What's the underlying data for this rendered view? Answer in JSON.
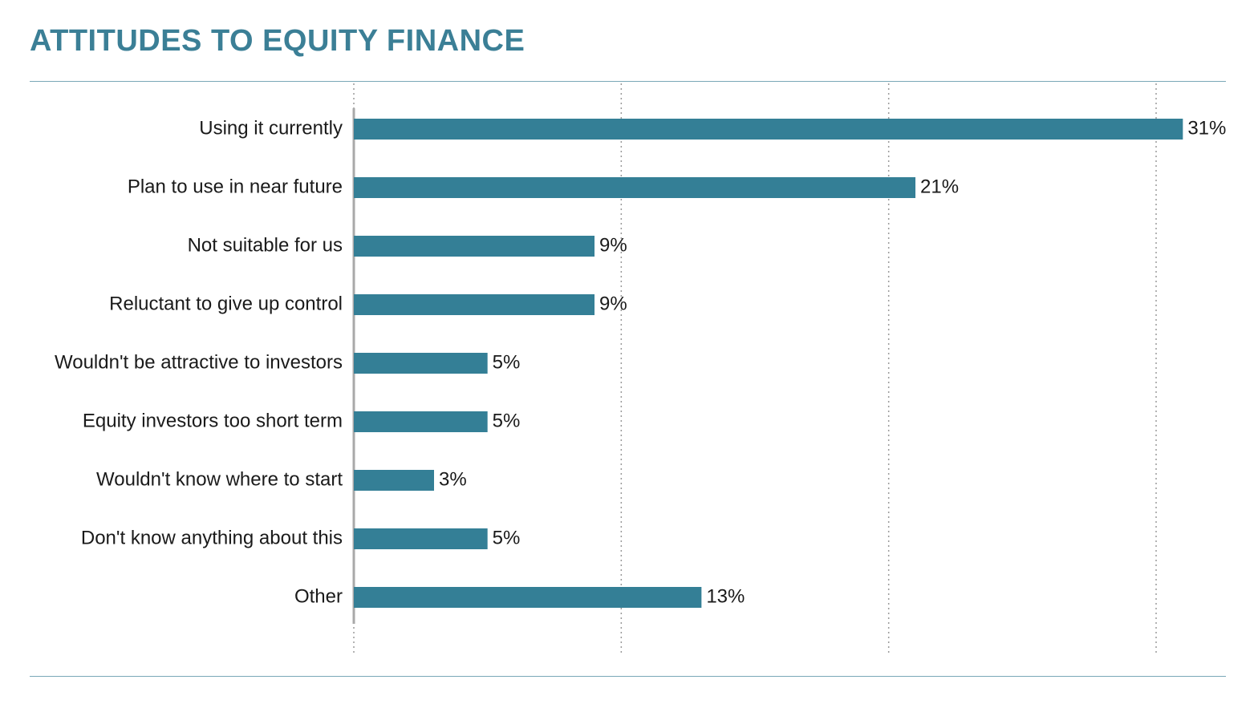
{
  "chart_data": {
    "type": "bar",
    "orientation": "horizontal",
    "title": "ATTITUDES TO EQUITY FINANCE",
    "categories": [
      "Using it currently",
      "Plan to use in near future",
      "Not suitable for us",
      "Reluctant to give up control",
      "Wouldn't be attractive to investors",
      "Equity investors too short term",
      "Wouldn't know where to start",
      "Don't know anything about this",
      "Other"
    ],
    "values": [
      31,
      21,
      9,
      9,
      5,
      5,
      3,
      5,
      13
    ],
    "value_labels": [
      "31%",
      "21%",
      "9%",
      "9%",
      "5%",
      "5%",
      "3%",
      "5%",
      "13%"
    ],
    "unit": "%",
    "xlim": [
      0,
      30
    ],
    "grid": true,
    "bar_color": "#347f96",
    "title_color": "#3b7f96"
  }
}
